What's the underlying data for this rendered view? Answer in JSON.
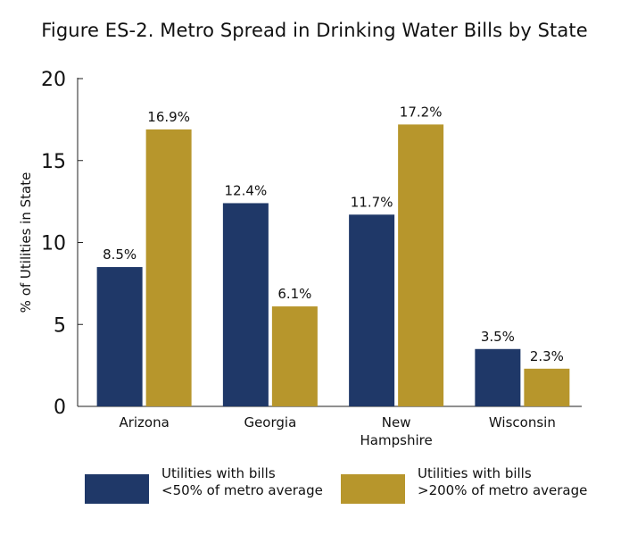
{
  "chart_data": {
    "type": "bar",
    "title": "Figure ES-2. Metro Spread in Drinking Water Bills by State",
    "xlabel": "",
    "ylabel": "% of Utilities in State",
    "ylim": [
      0,
      20
    ],
    "yticks": [
      "0",
      "5",
      "10",
      "15",
      "20"
    ],
    "categories": [
      [
        "Arizona"
      ],
      [
        "Georgia"
      ],
      [
        "New",
        "Hampshire"
      ],
      [
        "Wisconsin"
      ]
    ],
    "series": [
      {
        "name_lines": [
          "Utilities with bills",
          "<50% of metro average"
        ],
        "values": [
          8.5,
          12.4,
          11.7,
          3.5
        ],
        "labels": [
          "8.5%",
          "12.4%",
          "11.7%",
          "3.5%"
        ],
        "color": "#1f3868"
      },
      {
        "name_lines": [
          "Utilities with bills",
          ">200% of metro average"
        ],
        "values": [
          16.9,
          6.1,
          17.2,
          2.3
        ],
        "labels": [
          "16.9%",
          "6.1%",
          "17.2%",
          "2.3%"
        ],
        "color": "#b7962c"
      }
    ],
    "grid": false,
    "legend_position": "bottom"
  }
}
